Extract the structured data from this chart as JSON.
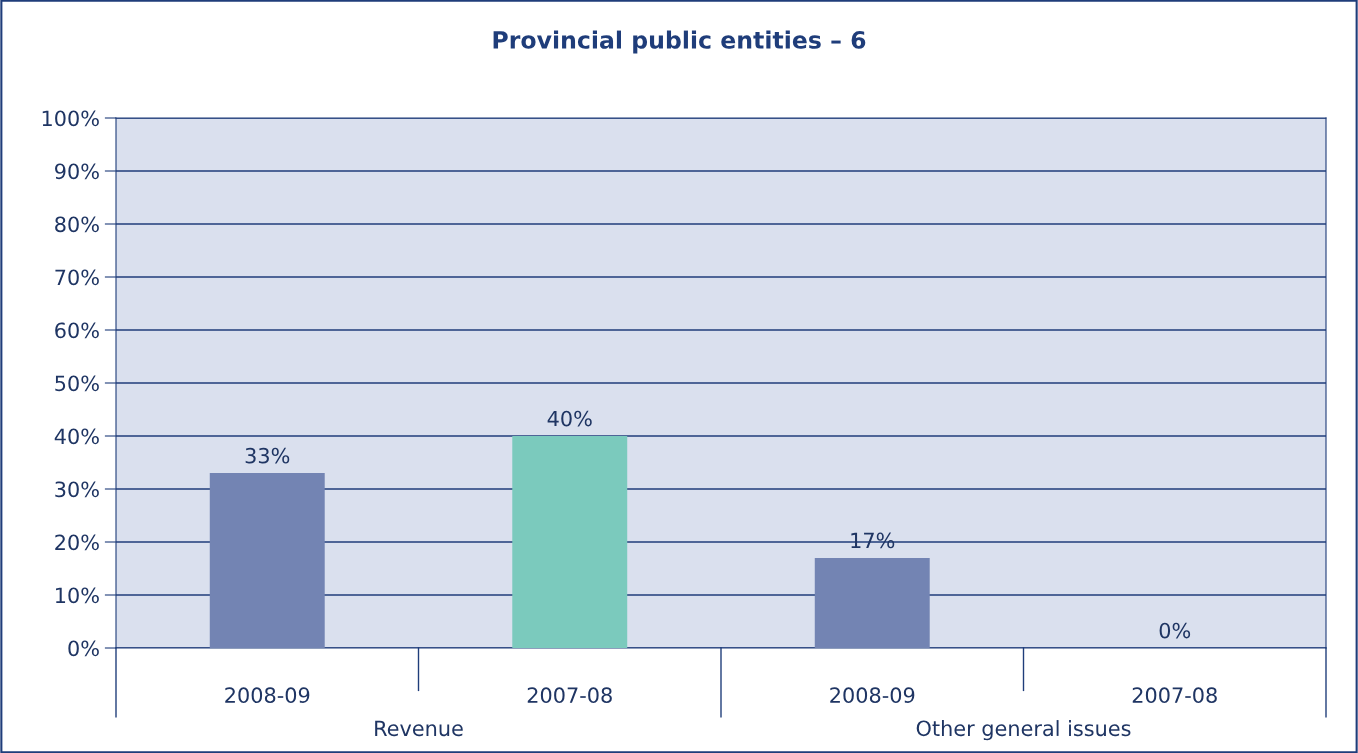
{
  "chart_data": {
    "type": "bar",
    "title": "Provincial public entities – 6",
    "categories": [
      "2008-09",
      "2007-08",
      "2008-09",
      "2007-08"
    ],
    "values": [
      33,
      40,
      17,
      0
    ],
    "colors": [
      "#7384b3",
      "#7bcabd",
      "#7384b3",
      "#7bcabd"
    ],
    "value_labels": [
      "33%",
      "40%",
      "17%",
      "0%"
    ],
    "annotations": [
      "Revenue",
      "Other general issues"
    ],
    "ylim": [
      0,
      100
    ],
    "yticks": [
      {
        "value": 0,
        "label": "0%"
      },
      {
        "value": 10,
        "label": "10%"
      },
      {
        "value": 20,
        "label": "20%"
      },
      {
        "value": 30,
        "label": "30%"
      },
      {
        "value": 40,
        "label": "40%"
      },
      {
        "value": 50,
        "label": "50%"
      },
      {
        "value": 60,
        "label": "60%"
      },
      {
        "value": 70,
        "label": "70%"
      },
      {
        "value": 80,
        "label": "80%"
      },
      {
        "value": 90,
        "label": "90%"
      },
      {
        "value": 100,
        "label": "100%"
      }
    ],
    "grid": "y"
  }
}
